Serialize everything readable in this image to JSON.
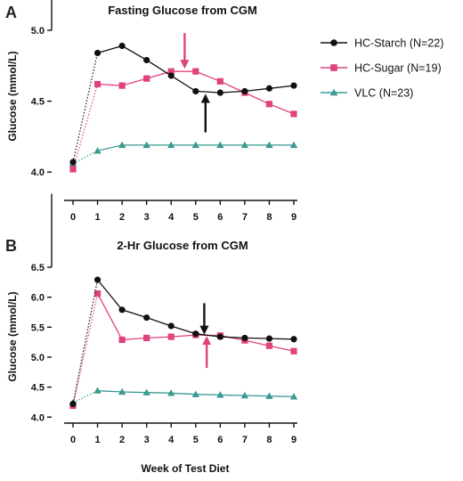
{
  "figure": {
    "xlabel": "Week of Test Diet",
    "legend_placement": "right of top panel"
  },
  "colors": {
    "hc_starch": "#111111",
    "hc_sugar": "#e0417f",
    "vlc": "#3a9a93",
    "arrow_black": "#111111",
    "arrow_pink": "#e0417f"
  },
  "chart_data": [
    {
      "panel": "A",
      "type": "line",
      "title": "Fasting Glucose from CGM",
      "xlabel": "",
      "ylabel": "Glucose (mmol/L)",
      "x": [
        0,
        1,
        2,
        3,
        4,
        5,
        6,
        7,
        8,
        9
      ],
      "xticks": [
        "0",
        "1",
        "2",
        "3",
        "4",
        "5",
        "6",
        "7",
        "8",
        "9"
      ],
      "ylim": [
        3.8,
        5.0
      ],
      "yticks": [
        "4.0",
        "4.5",
        "5.0"
      ],
      "ytick_values": [
        4.0,
        4.5,
        5.0
      ],
      "grid": false,
      "series": [
        {
          "name": "HC-Starch (N=22)",
          "key": "hc_starch",
          "marker": "circle",
          "values": [
            4.07,
            4.84,
            4.89,
            4.79,
            4.68,
            4.57,
            4.56,
            4.57,
            4.59,
            4.61
          ]
        },
        {
          "name": "HC-Sugar (N=19)",
          "key": "hc_sugar",
          "marker": "square",
          "values": [
            4.02,
            4.62,
            4.61,
            4.66,
            4.71,
            4.71,
            4.64,
            4.56,
            4.48,
            4.41
          ]
        },
        {
          "name": "VLC (N=23)",
          "key": "vlc",
          "marker": "triangle",
          "values": [
            4.06,
            4.15,
            4.19,
            4.19,
            4.19,
            4.19,
            4.19,
            4.19,
            4.19,
            4.19
          ]
        }
      ],
      "annotations": [
        {
          "type": "arrow",
          "color_key": "arrow_pink",
          "x": 4.55,
          "y_from": 4.98,
          "y_to": 4.76,
          "direction": "down"
        },
        {
          "type": "arrow",
          "color_key": "arrow_black",
          "x": 5.4,
          "y_from": 4.28,
          "y_to": 4.52,
          "direction": "up"
        }
      ]
    },
    {
      "panel": "B",
      "type": "line",
      "title": "2-Hr Glucose from CGM",
      "xlabel": "Week of Test Diet",
      "ylabel": "Glucose (mmol/L)",
      "x": [
        0,
        1,
        2,
        3,
        4,
        5,
        6,
        7,
        8,
        9
      ],
      "xticks": [
        "0",
        "1",
        "2",
        "3",
        "4",
        "5",
        "6",
        "7",
        "8",
        "9"
      ],
      "ylim": [
        3.9,
        6.5
      ],
      "yticks": [
        "4.0",
        "4.5",
        "5.0",
        "5.5",
        "6.0",
        "6.5"
      ],
      "ytick_values": [
        4.0,
        4.5,
        5.0,
        5.5,
        6.0,
        6.5
      ],
      "grid": false,
      "series": [
        {
          "name": "HC-Starch (N=22)",
          "key": "hc_starch",
          "marker": "circle",
          "values": [
            4.22,
            6.29,
            5.79,
            5.66,
            5.52,
            5.39,
            5.34,
            5.32,
            5.31,
            5.3
          ]
        },
        {
          "name": "HC-Sugar (N=19)",
          "key": "hc_sugar",
          "marker": "square",
          "values": [
            4.19,
            6.06,
            5.29,
            5.32,
            5.34,
            5.37,
            5.36,
            5.28,
            5.19,
            5.1
          ]
        },
        {
          "name": "VLC (N=23)",
          "key": "vlc",
          "marker": "triangle",
          "values": [
            4.24,
            4.44,
            4.42,
            4.41,
            4.4,
            4.38,
            4.37,
            4.36,
            4.35,
            4.34
          ]
        }
      ],
      "annotations": [
        {
          "type": "arrow",
          "color_key": "arrow_black",
          "x": 5.35,
          "y_from": 5.9,
          "y_to": 5.45,
          "direction": "down"
        },
        {
          "type": "arrow",
          "color_key": "arrow_pink",
          "x": 5.45,
          "y_from": 4.82,
          "y_to": 5.28,
          "direction": "up"
        }
      ]
    }
  ]
}
